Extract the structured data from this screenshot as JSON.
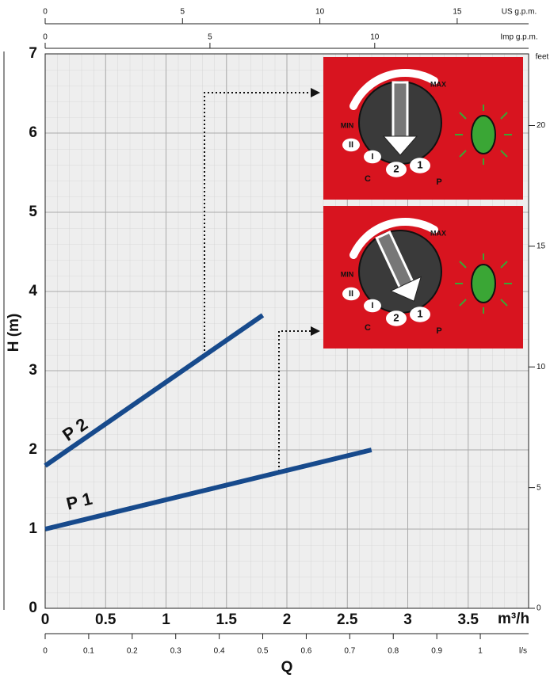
{
  "chart_data": {
    "type": "line",
    "xlabel": "Q",
    "xunit": "m³/h",
    "ylabel": "H (m)",
    "xlim": [
      0,
      4
    ],
    "ylim": [
      0,
      7
    ],
    "xticks": [
      0,
      0.5,
      1,
      1.5,
      2,
      2.5,
      3,
      3.5
    ],
    "yticks": [
      0,
      1,
      2,
      3,
      4,
      5,
      6,
      7
    ],
    "grid": true,
    "series": [
      {
        "name": "P 1",
        "color": "#174a8c",
        "x": [
          0,
          2.7
        ],
        "values": [
          1,
          2.0
        ]
      },
      {
        "name": "P 2",
        "color": "#174a8c",
        "x": [
          0,
          1.8
        ],
        "values": [
          1.8,
          3.7
        ]
      }
    ],
    "extra_axes": [
      {
        "label": "US g.p.m.",
        "position": "top-outer",
        "lim": [
          0,
          17.6
        ],
        "ticks": [
          0,
          5,
          10,
          15
        ]
      },
      {
        "label": "Imp g.p.m.",
        "position": "top-inner",
        "lim": [
          0,
          14.67
        ],
        "ticks": [
          0,
          5,
          10
        ]
      },
      {
        "label": "l/s",
        "position": "bottom",
        "lim": [
          0,
          1.111
        ],
        "ticks": [
          0,
          0.1,
          0.2,
          0.3,
          0.4,
          0.5,
          0.6,
          0.7,
          0.8,
          0.9,
          1
        ]
      },
      {
        "label": "feet",
        "position": "right",
        "lim": [
          0,
          22.97
        ],
        "ticks": [
          0,
          5,
          10,
          15,
          20
        ]
      }
    ],
    "insets": [
      {
        "labels": [
          "MAX",
          "MIN",
          "II",
          "I",
          "2",
          "1",
          "C",
          "P"
        ]
      },
      {
        "labels": [
          "MAX",
          "MIN",
          "II",
          "I",
          "2",
          "1",
          "C",
          "P"
        ]
      }
    ]
  }
}
